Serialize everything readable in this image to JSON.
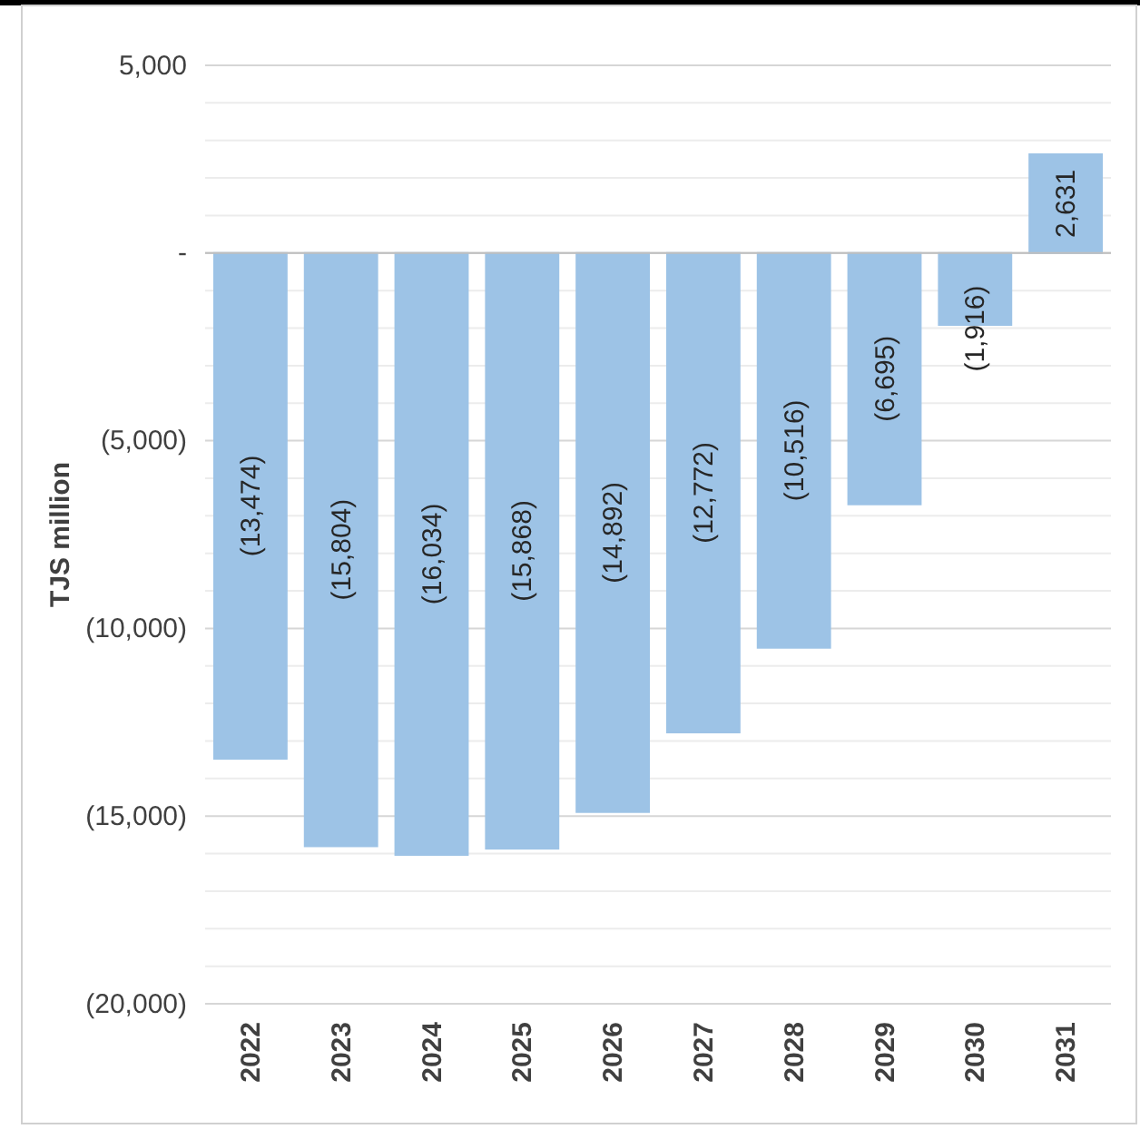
{
  "chart_data": {
    "type": "bar",
    "ylabel": "TJS million",
    "categories": [
      "2022",
      "2023",
      "2024",
      "2025",
      "2026",
      "2027",
      "2028",
      "2029",
      "2030",
      "2031"
    ],
    "values": [
      -13474,
      -15804,
      -16034,
      -15868,
      -14892,
      -12772,
      -10516,
      -6695,
      -1916,
      2631
    ],
    "value_labels": [
      "(13,474)",
      "(15,804)",
      "(16,034)",
      "(15,868)",
      "(14,892)",
      "(12,772)",
      "(10,516)",
      "(6,695)",
      "(1,916)",
      "2,631"
    ],
    "color": "#9dc3e6",
    "ylim": [
      -20000,
      5000
    ],
    "yticks": [
      {
        "value": -20000,
        "label": "(20,000)"
      },
      {
        "value": -19000,
        "label": null
      },
      {
        "value": -18000,
        "label": null
      },
      {
        "value": -17000,
        "label": null
      },
      {
        "value": -16000,
        "label": null
      },
      {
        "value": -15000,
        "label": "(15,000)"
      },
      {
        "value": -14000,
        "label": null
      },
      {
        "value": -13000,
        "label": null
      },
      {
        "value": -12000,
        "label": null
      },
      {
        "value": -11000,
        "label": null
      },
      {
        "value": -10000,
        "label": "(10,000)"
      },
      {
        "value": -9000,
        "label": null
      },
      {
        "value": -8000,
        "label": null
      },
      {
        "value": -7000,
        "label": null
      },
      {
        "value": -6000,
        "label": null
      },
      {
        "value": -5000,
        "label": "(5,000)"
      },
      {
        "value": -4000,
        "label": null
      },
      {
        "value": -3000,
        "label": null
      },
      {
        "value": -2000,
        "label": null
      },
      {
        "value": -1000,
        "label": null
      },
      {
        "value": 0,
        "label": "-"
      },
      {
        "value": 1000,
        "label": null
      },
      {
        "value": 2000,
        "label": null
      },
      {
        "value": 3000,
        "label": null
      },
      {
        "value": 4000,
        "label": null
      },
      {
        "value": 5000,
        "label": "5,000"
      }
    ],
    "grid": "y"
  }
}
